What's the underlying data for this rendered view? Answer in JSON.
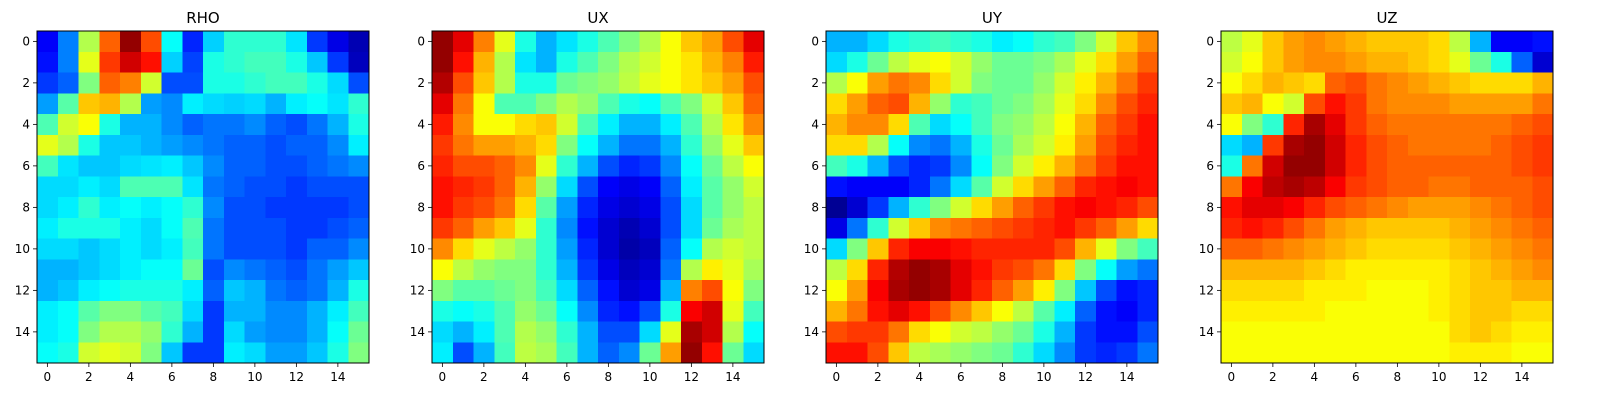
{
  "chart_data": [
    {
      "type": "heatmap",
      "title": "RHO",
      "colormap": "jet",
      "x_ticks": [
        "0",
        "2",
        "4",
        "6",
        "8",
        "10",
        "12",
        "14"
      ],
      "y_ticks": [
        "0",
        "2",
        "4",
        "6",
        "8",
        "10",
        "12",
        "14"
      ],
      "xlim": [
        -0.5,
        15.5
      ],
      "ylim": [
        15.5,
        -0.5
      ],
      "values": [
        [
          0.12,
          0.25,
          0.55,
          0.78,
          0.98,
          0.8,
          0.38,
          0.16,
          0.33,
          0.42,
          0.42,
          0.42,
          0.35,
          0.18,
          0.1,
          0.05
        ],
        [
          0.14,
          0.25,
          0.6,
          0.82,
          0.92,
          0.86,
          0.33,
          0.19,
          0.4,
          0.42,
          0.44,
          0.44,
          0.4,
          0.32,
          0.18,
          0.06
        ],
        [
          0.18,
          0.22,
          0.5,
          0.78,
          0.75,
          0.58,
          0.2,
          0.2,
          0.4,
          0.4,
          0.42,
          0.44,
          0.44,
          0.4,
          0.34,
          0.2
        ],
        [
          0.28,
          0.46,
          0.68,
          0.7,
          0.55,
          0.28,
          0.26,
          0.36,
          0.34,
          0.33,
          0.34,
          0.3,
          0.36,
          0.38,
          0.35,
          0.42
        ],
        [
          0.45,
          0.58,
          0.62,
          0.4,
          0.3,
          0.3,
          0.26,
          0.22,
          0.24,
          0.24,
          0.26,
          0.22,
          0.2,
          0.24,
          0.3,
          0.4
        ],
        [
          0.6,
          0.55,
          0.4,
          0.32,
          0.32,
          0.3,
          0.28,
          0.26,
          0.24,
          0.22,
          0.22,
          0.2,
          0.22,
          0.22,
          0.26,
          0.36
        ],
        [
          0.44,
          0.35,
          0.32,
          0.32,
          0.34,
          0.35,
          0.36,
          0.32,
          0.26,
          0.22,
          0.22,
          0.2,
          0.2,
          0.22,
          0.24,
          0.26
        ],
        [
          0.34,
          0.34,
          0.36,
          0.34,
          0.45,
          0.45,
          0.45,
          0.35,
          0.24,
          0.22,
          0.2,
          0.2,
          0.18,
          0.2,
          0.2,
          0.2
        ],
        [
          0.34,
          0.36,
          0.42,
          0.36,
          0.38,
          0.36,
          0.38,
          0.42,
          0.26,
          0.2,
          0.2,
          0.18,
          0.18,
          0.18,
          0.18,
          0.2
        ],
        [
          0.36,
          0.4,
          0.4,
          0.4,
          0.36,
          0.34,
          0.38,
          0.45,
          0.24,
          0.2,
          0.2,
          0.2,
          0.18,
          0.18,
          0.2,
          0.22
        ],
        [
          0.34,
          0.34,
          0.32,
          0.34,
          0.36,
          0.34,
          0.36,
          0.44,
          0.24,
          0.2,
          0.2,
          0.2,
          0.18,
          0.22,
          0.22,
          0.26
        ],
        [
          0.3,
          0.3,
          0.32,
          0.34,
          0.36,
          0.38,
          0.38,
          0.48,
          0.2,
          0.26,
          0.24,
          0.22,
          0.2,
          0.24,
          0.28,
          0.32
        ],
        [
          0.3,
          0.32,
          0.36,
          0.38,
          0.4,
          0.4,
          0.4,
          0.36,
          0.22,
          0.32,
          0.3,
          0.24,
          0.22,
          0.24,
          0.3,
          0.4
        ],
        [
          0.36,
          0.38,
          0.46,
          0.5,
          0.5,
          0.46,
          0.44,
          0.34,
          0.18,
          0.3,
          0.3,
          0.26,
          0.26,
          0.3,
          0.36,
          0.44
        ],
        [
          0.36,
          0.38,
          0.5,
          0.55,
          0.55,
          0.52,
          0.42,
          0.3,
          0.18,
          0.34,
          0.28,
          0.26,
          0.26,
          0.3,
          0.38,
          0.48
        ],
        [
          0.38,
          0.4,
          0.58,
          0.6,
          0.58,
          0.5,
          0.32,
          0.18,
          0.18,
          0.36,
          0.34,
          0.28,
          0.28,
          0.32,
          0.4,
          0.5
        ]
      ]
    },
    {
      "type": "heatmap",
      "title": "UX",
      "colormap": "jet",
      "x_ticks": [
        "0",
        "2",
        "4",
        "6",
        "8",
        "10",
        "12",
        "14"
      ],
      "y_ticks": [
        "0",
        "2",
        "4",
        "6",
        "8",
        "10",
        "12",
        "14"
      ],
      "xlim": [
        -0.5,
        15.5
      ],
      "ylim": [
        15.5,
        -0.5
      ],
      "values": [
        [
          0.98,
          0.9,
          0.75,
          0.6,
          0.4,
          0.3,
          0.35,
          0.4,
          0.45,
          0.5,
          0.55,
          0.62,
          0.68,
          0.72,
          0.8,
          0.9
        ],
        [
          0.98,
          0.86,
          0.7,
          0.55,
          0.35,
          0.3,
          0.4,
          0.45,
          0.5,
          0.55,
          0.58,
          0.62,
          0.65,
          0.7,
          0.75,
          0.85
        ],
        [
          0.95,
          0.8,
          0.68,
          0.55,
          0.4,
          0.4,
          0.48,
          0.5,
          0.52,
          0.56,
          0.6,
          0.62,
          0.65,
          0.68,
          0.72,
          0.8
        ],
        [
          0.9,
          0.76,
          0.62,
          0.45,
          0.45,
          0.5,
          0.55,
          0.52,
          0.45,
          0.4,
          0.38,
          0.45,
          0.5,
          0.58,
          0.68,
          0.78
        ],
        [
          0.85,
          0.74,
          0.62,
          0.62,
          0.66,
          0.68,
          0.58,
          0.45,
          0.36,
          0.3,
          0.3,
          0.36,
          0.45,
          0.55,
          0.65,
          0.74
        ],
        [
          0.82,
          0.76,
          0.72,
          0.72,
          0.7,
          0.66,
          0.5,
          0.38,
          0.3,
          0.24,
          0.24,
          0.3,
          0.42,
          0.52,
          0.6,
          0.68
        ],
        [
          0.84,
          0.8,
          0.8,
          0.78,
          0.74,
          0.6,
          0.42,
          0.3,
          0.2,
          0.16,
          0.18,
          0.26,
          0.38,
          0.48,
          0.56,
          0.62
        ],
        [
          0.86,
          0.84,
          0.82,
          0.78,
          0.7,
          0.52,
          0.34,
          0.2,
          0.12,
          0.1,
          0.12,
          0.22,
          0.36,
          0.46,
          0.52,
          0.58
        ],
        [
          0.86,
          0.82,
          0.8,
          0.76,
          0.66,
          0.46,
          0.28,
          0.16,
          0.1,
          0.08,
          0.1,
          0.2,
          0.34,
          0.46,
          0.52,
          0.56
        ],
        [
          0.82,
          0.78,
          0.72,
          0.68,
          0.6,
          0.42,
          0.26,
          0.14,
          0.08,
          0.05,
          0.08,
          0.2,
          0.34,
          0.48,
          0.54,
          0.56
        ],
        [
          0.74,
          0.66,
          0.6,
          0.56,
          0.52,
          0.42,
          0.28,
          0.16,
          0.08,
          0.04,
          0.06,
          0.22,
          0.38,
          0.55,
          0.58,
          0.56
        ],
        [
          0.62,
          0.56,
          0.52,
          0.5,
          0.5,
          0.42,
          0.3,
          0.18,
          0.1,
          0.06,
          0.08,
          0.24,
          0.55,
          0.64,
          0.6,
          0.54
        ],
        [
          0.5,
          0.46,
          0.46,
          0.48,
          0.5,
          0.44,
          0.34,
          0.22,
          0.14,
          0.08,
          0.1,
          0.3,
          0.75,
          0.8,
          0.62,
          0.5
        ],
        [
          0.4,
          0.38,
          0.4,
          0.45,
          0.52,
          0.48,
          0.38,
          0.26,
          0.16,
          0.14,
          0.2,
          0.4,
          0.88,
          0.92,
          0.6,
          0.44
        ],
        [
          0.34,
          0.3,
          0.36,
          0.45,
          0.55,
          0.52,
          0.42,
          0.3,
          0.2,
          0.2,
          0.34,
          0.6,
          0.96,
          0.92,
          0.55,
          0.38
        ],
        [
          0.36,
          0.2,
          0.3,
          0.44,
          0.56,
          0.54,
          0.44,
          0.3,
          0.22,
          0.26,
          0.48,
          0.72,
          0.98,
          0.86,
          0.48,
          0.34
        ]
      ]
    },
    {
      "type": "heatmap",
      "title": "UY",
      "colormap": "jet",
      "x_ticks": [
        "0",
        "2",
        "4",
        "6",
        "8",
        "10",
        "12",
        "14"
      ],
      "y_ticks": [
        "0",
        "2",
        "4",
        "6",
        "8",
        "10",
        "12",
        "14"
      ],
      "xlim": [
        -0.5,
        15.5
      ],
      "ylim": [
        15.5,
        -0.5
      ],
      "values": [
        [
          0.3,
          0.3,
          0.34,
          0.4,
          0.42,
          0.44,
          0.42,
          0.4,
          0.36,
          0.38,
          0.42,
          0.44,
          0.5,
          0.58,
          0.68,
          0.74
        ],
        [
          0.34,
          0.4,
          0.48,
          0.56,
          0.6,
          0.62,
          0.58,
          0.52,
          0.48,
          0.48,
          0.5,
          0.54,
          0.6,
          0.66,
          0.72,
          0.78
        ],
        [
          0.55,
          0.62,
          0.72,
          0.76,
          0.74,
          0.66,
          0.58,
          0.5,
          0.48,
          0.48,
          0.52,
          0.58,
          0.64,
          0.7,
          0.76,
          0.82
        ],
        [
          0.66,
          0.72,
          0.78,
          0.8,
          0.7,
          0.52,
          0.42,
          0.44,
          0.48,
          0.5,
          0.54,
          0.6,
          0.66,
          0.74,
          0.8,
          0.84
        ],
        [
          0.7,
          0.74,
          0.74,
          0.66,
          0.45,
          0.34,
          0.38,
          0.44,
          0.5,
          0.52,
          0.56,
          0.62,
          0.7,
          0.78,
          0.82,
          0.86
        ],
        [
          0.66,
          0.66,
          0.55,
          0.38,
          0.26,
          0.24,
          0.3,
          0.4,
          0.48,
          0.54,
          0.58,
          0.64,
          0.72,
          0.8,
          0.84,
          0.86
        ],
        [
          0.44,
          0.4,
          0.3,
          0.2,
          0.16,
          0.18,
          0.26,
          0.38,
          0.5,
          0.58,
          0.64,
          0.7,
          0.76,
          0.82,
          0.86,
          0.86
        ],
        [
          0.14,
          0.12,
          0.12,
          0.12,
          0.16,
          0.24,
          0.34,
          0.46,
          0.58,
          0.66,
          0.72,
          0.78,
          0.84,
          0.86,
          0.88,
          0.86
        ],
        [
          0.02,
          0.08,
          0.18,
          0.3,
          0.42,
          0.5,
          0.58,
          0.66,
          0.72,
          0.78,
          0.82,
          0.86,
          0.88,
          0.86,
          0.84,
          0.8
        ],
        [
          0.1,
          0.24,
          0.42,
          0.58,
          0.68,
          0.74,
          0.76,
          0.78,
          0.8,
          0.82,
          0.84,
          0.86,
          0.82,
          0.78,
          0.72,
          0.66
        ],
        [
          0.34,
          0.5,
          0.68,
          0.84,
          0.88,
          0.88,
          0.86,
          0.84,
          0.84,
          0.84,
          0.84,
          0.8,
          0.7,
          0.6,
          0.5,
          0.44
        ],
        [
          0.56,
          0.66,
          0.84,
          0.95,
          0.98,
          0.96,
          0.9,
          0.86,
          0.82,
          0.8,
          0.76,
          0.66,
          0.5,
          0.38,
          0.28,
          0.24
        ],
        [
          0.62,
          0.72,
          0.88,
          0.96,
          0.98,
          0.96,
          0.9,
          0.84,
          0.78,
          0.72,
          0.64,
          0.5,
          0.32,
          0.2,
          0.14,
          0.16
        ],
        [
          0.7,
          0.76,
          0.86,
          0.9,
          0.86,
          0.8,
          0.74,
          0.68,
          0.62,
          0.56,
          0.46,
          0.36,
          0.22,
          0.14,
          0.12,
          0.16
        ],
        [
          0.8,
          0.82,
          0.82,
          0.76,
          0.66,
          0.62,
          0.58,
          0.56,
          0.52,
          0.48,
          0.4,
          0.3,
          0.18,
          0.14,
          0.14,
          0.2
        ],
        [
          0.86,
          0.86,
          0.8,
          0.68,
          0.56,
          0.54,
          0.52,
          0.5,
          0.48,
          0.42,
          0.34,
          0.26,
          0.18,
          0.16,
          0.18,
          0.24
        ]
      ]
    },
    {
      "type": "heatmap",
      "title": "UZ",
      "colormap": "jet",
      "x_ticks": [
        "0",
        "2",
        "4",
        "6",
        "8",
        "10",
        "12",
        "14"
      ],
      "y_ticks": [
        "0",
        "2",
        "4",
        "6",
        "8",
        "10",
        "12",
        "14"
      ],
      "xlim": [
        -0.5,
        15.5
      ],
      "ylim": [
        15.5,
        -0.5
      ],
      "values": [
        [
          0.56,
          0.6,
          0.68,
          0.72,
          0.74,
          0.72,
          0.7,
          0.68,
          0.68,
          0.68,
          0.66,
          0.56,
          0.3,
          0.12,
          0.12,
          0.14
        ],
        [
          0.58,
          0.62,
          0.68,
          0.72,
          0.74,
          0.74,
          0.72,
          0.7,
          0.7,
          0.68,
          0.66,
          0.6,
          0.48,
          0.4,
          0.22,
          0.08
        ],
        [
          0.62,
          0.66,
          0.7,
          0.68,
          0.66,
          0.78,
          0.8,
          0.76,
          0.74,
          0.72,
          0.7,
          0.68,
          0.66,
          0.66,
          0.66,
          0.7
        ],
        [
          0.68,
          0.7,
          0.62,
          0.58,
          0.8,
          0.86,
          0.82,
          0.76,
          0.74,
          0.74,
          0.74,
          0.72,
          0.72,
          0.72,
          0.72,
          0.76
        ],
        [
          0.62,
          0.5,
          0.42,
          0.84,
          0.96,
          0.9,
          0.82,
          0.78,
          0.76,
          0.76,
          0.76,
          0.76,
          0.76,
          0.76,
          0.78,
          0.8
        ],
        [
          0.34,
          0.3,
          0.82,
          0.96,
          0.98,
          0.92,
          0.84,
          0.8,
          0.78,
          0.76,
          0.76,
          0.76,
          0.76,
          0.78,
          0.8,
          0.82
        ],
        [
          0.4,
          0.76,
          0.92,
          0.98,
          0.98,
          0.92,
          0.84,
          0.8,
          0.78,
          0.78,
          0.78,
          0.78,
          0.78,
          0.78,
          0.8,
          0.82
        ],
        [
          0.76,
          0.88,
          0.94,
          0.96,
          0.94,
          0.88,
          0.82,
          0.8,
          0.78,
          0.78,
          0.76,
          0.76,
          0.78,
          0.78,
          0.78,
          0.8
        ],
        [
          0.86,
          0.9,
          0.9,
          0.88,
          0.84,
          0.8,
          0.78,
          0.76,
          0.74,
          0.72,
          0.72,
          0.72,
          0.74,
          0.76,
          0.78,
          0.8
        ],
        [
          0.84,
          0.86,
          0.84,
          0.8,
          0.76,
          0.72,
          0.7,
          0.68,
          0.68,
          0.68,
          0.68,
          0.7,
          0.72,
          0.74,
          0.76,
          0.78
        ],
        [
          0.78,
          0.78,
          0.76,
          0.74,
          0.72,
          0.7,
          0.68,
          0.66,
          0.66,
          0.66,
          0.66,
          0.68,
          0.7,
          0.72,
          0.74,
          0.76
        ],
        [
          0.7,
          0.7,
          0.7,
          0.7,
          0.68,
          0.66,
          0.64,
          0.64,
          0.64,
          0.64,
          0.64,
          0.66,
          0.68,
          0.7,
          0.72,
          0.74
        ],
        [
          0.66,
          0.66,
          0.66,
          0.66,
          0.64,
          0.64,
          0.64,
          0.62,
          0.62,
          0.62,
          0.64,
          0.66,
          0.68,
          0.68,
          0.7,
          0.7
        ],
        [
          0.64,
          0.64,
          0.64,
          0.64,
          0.64,
          0.62,
          0.62,
          0.62,
          0.62,
          0.62,
          0.64,
          0.66,
          0.68,
          0.68,
          0.66,
          0.66
        ],
        [
          0.62,
          0.62,
          0.62,
          0.62,
          0.62,
          0.62,
          0.62,
          0.62,
          0.62,
          0.62,
          0.62,
          0.66,
          0.68,
          0.66,
          0.64,
          0.64
        ],
        [
          0.62,
          0.62,
          0.62,
          0.62,
          0.62,
          0.62,
          0.62,
          0.62,
          0.62,
          0.62,
          0.62,
          0.64,
          0.64,
          0.64,
          0.62,
          0.62
        ]
      ]
    }
  ]
}
